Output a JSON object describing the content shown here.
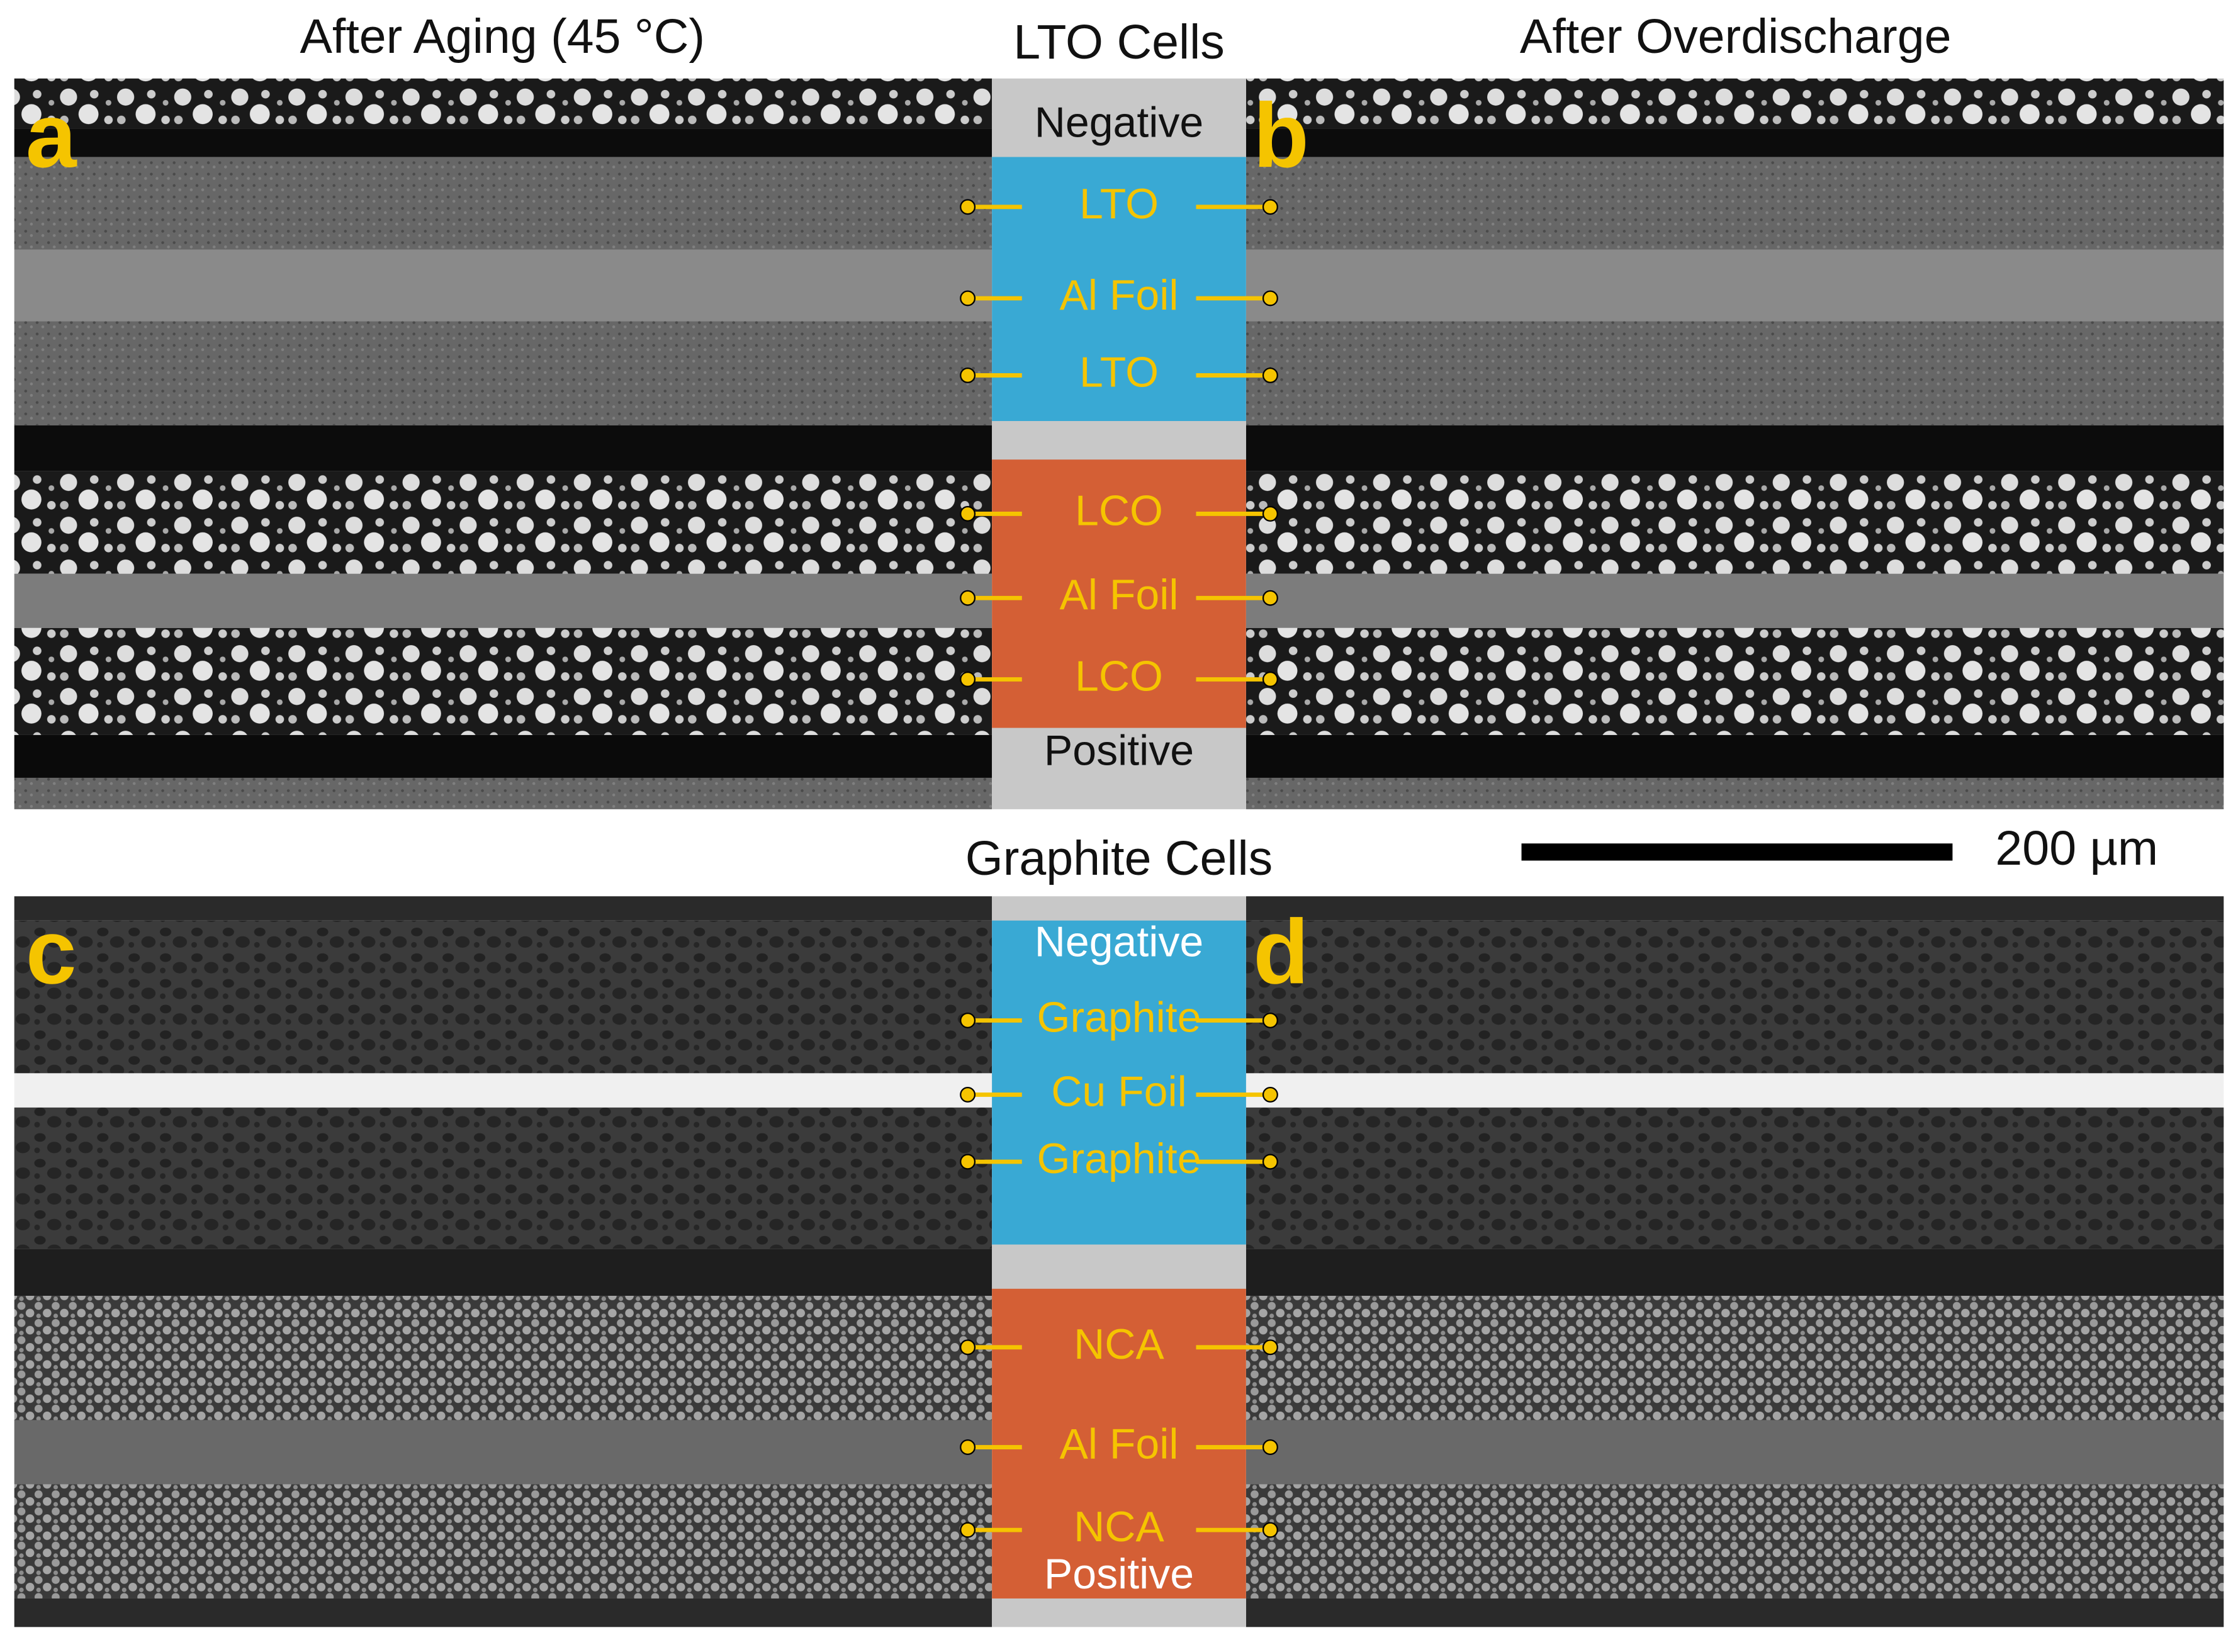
{
  "titles": {
    "left": "After Aging (45 °C)",
    "lto": "LTO Cells",
    "right": "After Overdischarge",
    "graphite": "Graphite Cells"
  },
  "panel_letters": [
    "a",
    "b",
    "c",
    "d"
  ],
  "scale_bar": "200 µm",
  "lto_stack": {
    "top": "Negative",
    "layers": [
      "LTO",
      "Al Foil",
      "LTO",
      "LCO",
      "Al Foil",
      "LCO"
    ],
    "bottom": "Positive"
  },
  "graphite_stack": {
    "top": "Negative",
    "layers": [
      "Graphite",
      "Cu Foil",
      "Graphite",
      "NCA",
      "Al Foil",
      "NCA"
    ],
    "bottom": "Positive"
  }
}
